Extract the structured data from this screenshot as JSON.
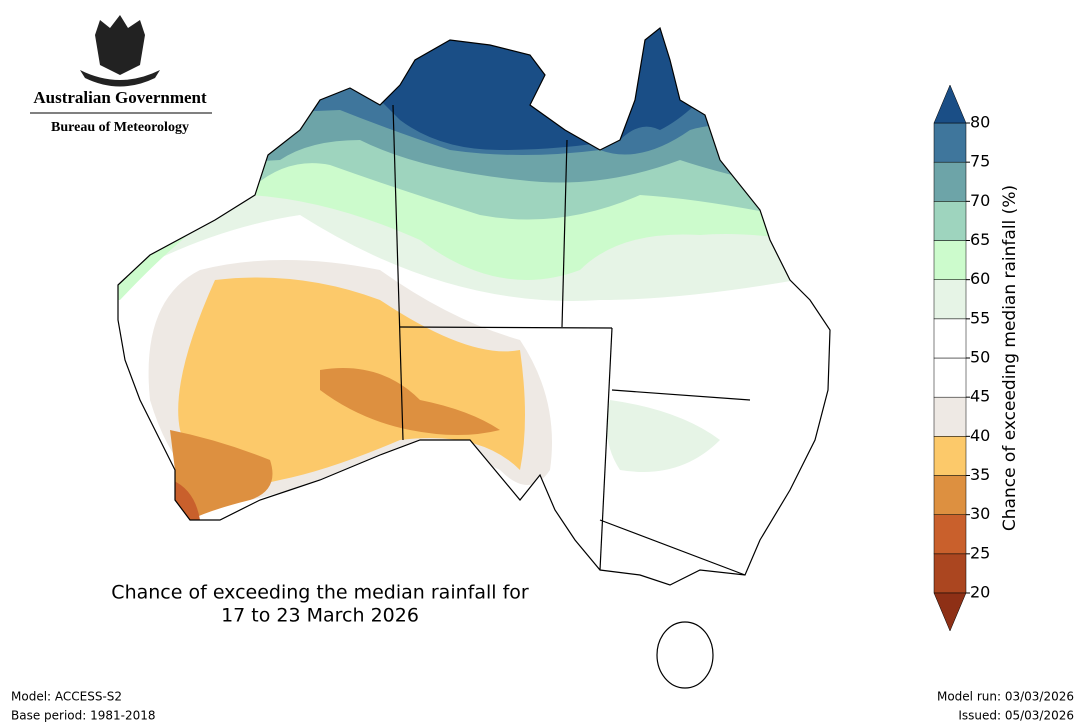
{
  "header": {
    "government": "Australian Government",
    "agency": "Bureau of Meteorology"
  },
  "map": {
    "title_lines": [
      "Chance of exceeding the median rainfall for",
      "17 to 23 March 2026"
    ]
  },
  "colorbar": {
    "label": "Chance of exceeding median rainfall (%)",
    "ticks": [
      20,
      25,
      30,
      35,
      40,
      45,
      50,
      55,
      60,
      65,
      70,
      75,
      80
    ],
    "colors": [
      "#ab4620",
      "#c9602c",
      "#dd9040",
      "#fcc96a",
      "#eee9e4",
      "#ffffff",
      "#ffffff",
      "#e6f4e6",
      "#ccfbcc",
      "#9ed4be",
      "#6da4a8",
      "#3f769c"
    ],
    "under_color": "#8e3016",
    "over_color": "#1a4e86"
  },
  "footer": {
    "model": "Model: ACCESS-S2",
    "base_period": "Base period: 1981-2018",
    "model_run": "Model run: 03/03/2026",
    "issued": "Issued: 05/03/2026"
  }
}
